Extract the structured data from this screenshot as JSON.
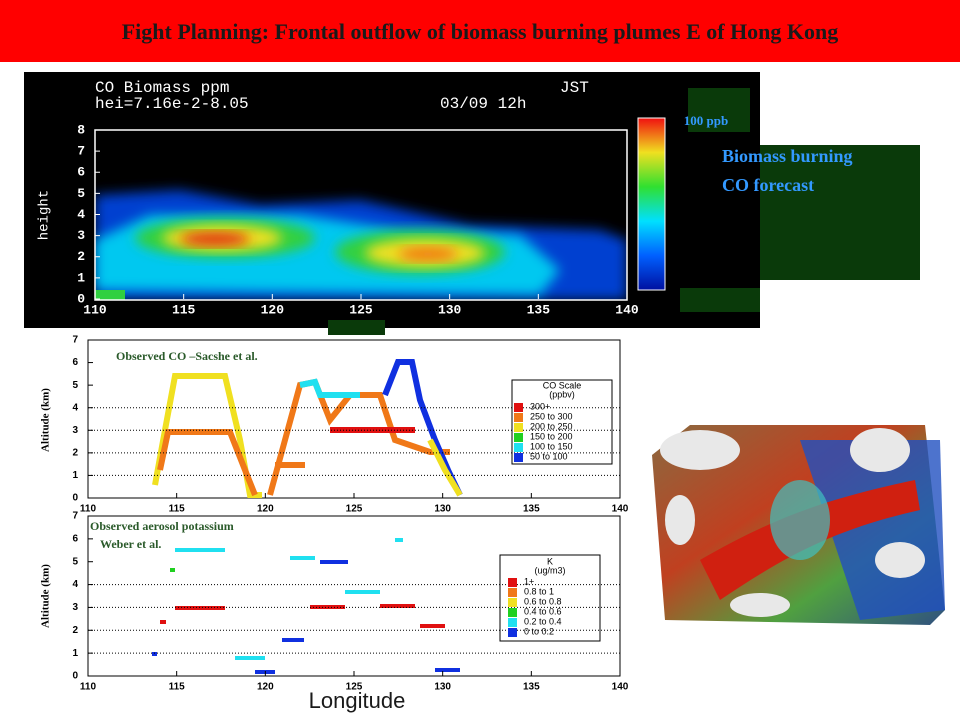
{
  "title": "Fight Planning: Frontal outflow of biomass burning plumes E of Hong Kong",
  "forecast_panel": {
    "header_left": "CO Biomass ppm",
    "header_right": "JST",
    "line2_left": "hei=7.16e-2-8.05",
    "line2_right": "03/09 12h",
    "y_label": "height",
    "x_ticks": [
      110,
      115,
      120,
      125,
      130,
      135,
      140
    ],
    "y_ticks": [
      0,
      1,
      2,
      3,
      4,
      5,
      6,
      7,
      8
    ]
  },
  "colorbar_label": "100 ppb",
  "forecast_caption": [
    "Biomass burning",
    "CO forecast"
  ],
  "co_panel": {
    "annotation": "Observed CO –Sacshe et al.",
    "y_label": "Altitude (km)",
    "x_ticks": [
      110,
      115,
      120,
      125,
      130,
      135,
      140
    ],
    "y_ticks": [
      0,
      1,
      2,
      3,
      4,
      5,
      6,
      7
    ],
    "legend": {
      "title": [
        "CO Scale",
        "(ppbv)"
      ],
      "items": [
        {
          "label": "300+",
          "color": "#e01010"
        },
        {
          "label": "250 to 300",
          "color": "#f07818"
        },
        {
          "label": "200 to 250",
          "color": "#f0e020"
        },
        {
          "label": "150 to 200",
          "color": "#20d020"
        },
        {
          "label": "100 to 150",
          "color": "#20e0f0"
        },
        {
          "label": "50 to 100",
          "color": "#1030e0"
        }
      ]
    }
  },
  "k_panel": {
    "annotation": [
      "Observed aerosol potassium",
      "Weber et al."
    ],
    "y_label": "Altitude (km)",
    "x_ticks": [
      110,
      115,
      120,
      125,
      130,
      135,
      140
    ],
    "y_ticks": [
      0,
      1,
      2,
      3,
      4,
      5,
      6,
      7
    ],
    "legend": {
      "title": [
        "K",
        "(ug/m3)"
      ],
      "items": [
        {
          "label": "1+",
          "color": "#e01010"
        },
        {
          "label": "0.8 to 1",
          "color": "#f07818"
        },
        {
          "label": "0.6 to 0.8",
          "color": "#f0e020"
        },
        {
          "label": "0.4 to 0.6",
          "color": "#20d020"
        },
        {
          "label": "0.2 to 0.4",
          "color": "#20e0f0"
        },
        {
          "label": "0 to 0.2",
          "color": "#1030e0"
        }
      ]
    }
  },
  "x_axis_title": "Longitude"
}
